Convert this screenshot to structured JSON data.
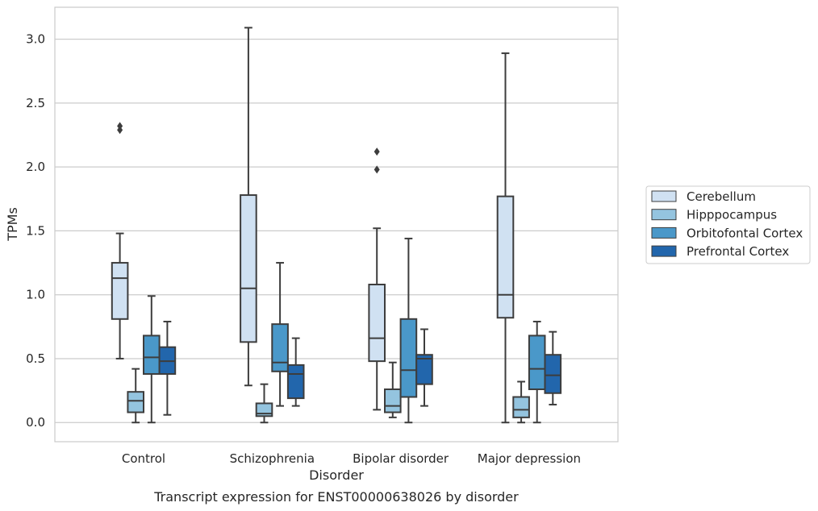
{
  "chart_data": {
    "type": "box",
    "caption": "Transcript expression for ENST00000638026 by disorder",
    "xlabel": "Disorder",
    "ylabel": "TPMs",
    "ylim": [
      -0.15,
      3.25
    ],
    "yticks": [
      "0.0",
      "0.5",
      "1.0",
      "1.5",
      "2.0",
      "2.5",
      "3.0"
    ],
    "grid": "horizontal",
    "legend_position": "right",
    "categories": [
      "Control",
      "Schizophrenia",
      "Bipolar disorder",
      "Major depression"
    ],
    "series": [
      {
        "name": "Cerebellum",
        "color": "#d0e1f2",
        "boxes": [
          {
            "whisker_low": 0.5,
            "q1": 0.81,
            "median": 1.13,
            "q3": 1.25,
            "whisker_high": 1.48,
            "outliers": [
              2.29,
              2.32
            ]
          },
          {
            "whisker_low": 0.29,
            "q1": 0.63,
            "median": 1.05,
            "q3": 1.78,
            "whisker_high": 3.09,
            "outliers": []
          },
          {
            "whisker_low": 0.1,
            "q1": 0.48,
            "median": 0.66,
            "q3": 1.08,
            "whisker_high": 1.52,
            "outliers": [
              1.98,
              2.12
            ]
          },
          {
            "whisker_low": 0.0,
            "q1": 0.82,
            "median": 1.0,
            "q3": 1.77,
            "whisker_high": 2.89,
            "outliers": []
          }
        ]
      },
      {
        "name": "Hipppocampus",
        "color": "#94c4df",
        "boxes": [
          {
            "whisker_low": 0.0,
            "q1": 0.08,
            "median": 0.17,
            "q3": 0.24,
            "whisker_high": 0.42,
            "outliers": []
          },
          {
            "whisker_low": 0.0,
            "q1": 0.05,
            "median": 0.07,
            "q3": 0.15,
            "whisker_high": 0.3,
            "outliers": []
          },
          {
            "whisker_low": 0.04,
            "q1": 0.08,
            "median": 0.13,
            "q3": 0.26,
            "whisker_high": 0.47,
            "outliers": []
          },
          {
            "whisker_low": 0.0,
            "q1": 0.04,
            "median": 0.1,
            "q3": 0.2,
            "whisker_high": 0.32,
            "outliers": []
          }
        ]
      },
      {
        "name": "Orbitofontal Cortex",
        "color": "#4a98c9",
        "boxes": [
          {
            "whisker_low": 0.0,
            "q1": 0.38,
            "median": 0.51,
            "q3": 0.68,
            "whisker_high": 0.99,
            "outliers": []
          },
          {
            "whisker_low": 0.13,
            "q1": 0.4,
            "median": 0.47,
            "q3": 0.77,
            "whisker_high": 1.25,
            "outliers": []
          },
          {
            "whisker_low": 0.0,
            "q1": 0.2,
            "median": 0.41,
            "q3": 0.81,
            "whisker_high": 1.44,
            "outliers": []
          },
          {
            "whisker_low": 0.0,
            "q1": 0.26,
            "median": 0.42,
            "q3": 0.68,
            "whisker_high": 0.79,
            "outliers": []
          }
        ]
      },
      {
        "name": "Prefrontal Cortex",
        "color": "#2266ac",
        "boxes": [
          {
            "whisker_low": 0.06,
            "q1": 0.38,
            "median": 0.48,
            "q3": 0.59,
            "whisker_high": 0.79,
            "outliers": []
          },
          {
            "whisker_low": 0.13,
            "q1": 0.19,
            "median": 0.38,
            "q3": 0.45,
            "whisker_high": 0.66,
            "outliers": []
          },
          {
            "whisker_low": 0.13,
            "q1": 0.3,
            "median": 0.5,
            "q3": 0.53,
            "whisker_high": 0.73,
            "outliers": []
          },
          {
            "whisker_low": 0.14,
            "q1": 0.23,
            "median": 0.37,
            "q3": 0.53,
            "whisker_high": 0.71,
            "outliers": []
          }
        ]
      }
    ]
  }
}
